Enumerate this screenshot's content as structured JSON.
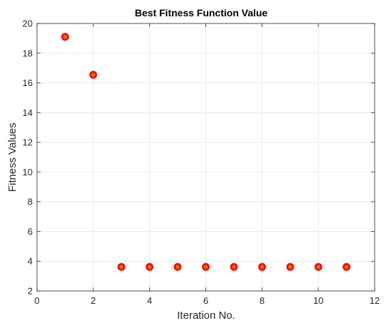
{
  "chart_data": {
    "type": "scatter",
    "title": "Best Fitness Function Value",
    "xlabel": "Iteration No.",
    "ylabel": "Fitness Values",
    "xlim": [
      0,
      12
    ],
    "ylim": [
      2,
      20
    ],
    "xticks": [
      0,
      2,
      4,
      6,
      8,
      10,
      12
    ],
    "yticks": [
      2,
      4,
      6,
      8,
      10,
      12,
      14,
      16,
      18,
      20
    ],
    "grid": true,
    "box": true,
    "series": [
      {
        "x": [
          1,
          2,
          3,
          4,
          5,
          6,
          7,
          8,
          9,
          10,
          11
        ],
        "y": [
          19.1,
          16.55,
          3.62,
          3.62,
          3.62,
          3.62,
          3.62,
          3.62,
          3.62,
          3.62,
          3.62
        ],
        "marker": "circle",
        "edge_color": "#ff0000",
        "face_color": "#cc7722"
      }
    ]
  }
}
